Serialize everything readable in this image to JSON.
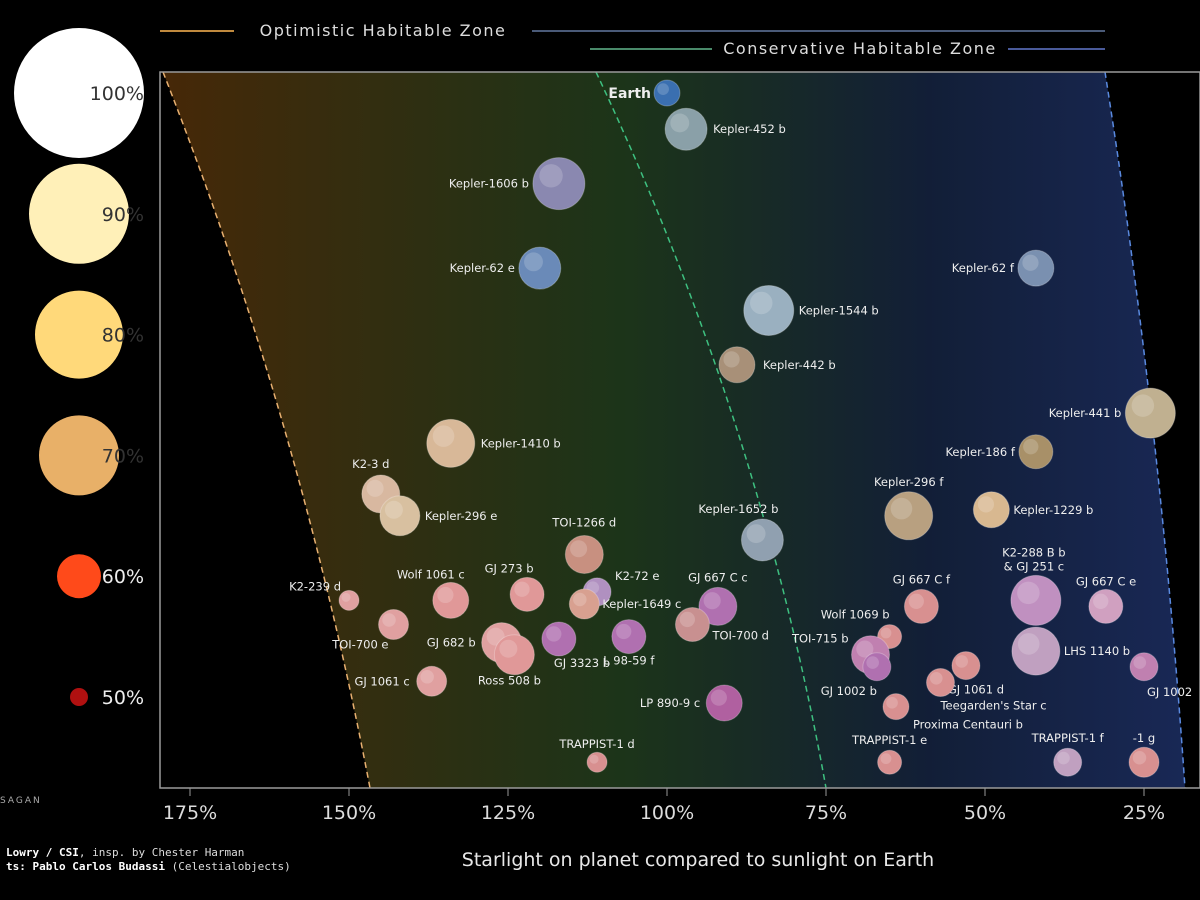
{
  "chart_data": {
    "type": "scatter",
    "xlabel": "Starlight on planet compared to sunlight on Earth",
    "x_ticks": [
      "175%",
      "150%",
      "125%",
      "100%",
      "75%",
      "50%",
      "25%"
    ],
    "x_tick_values": [
      175,
      150,
      125,
      100,
      75,
      50,
      25
    ],
    "xlim": [
      180,
      22
    ],
    "ylim": [
      43,
      102
    ],
    "y_ticks": [
      "100%",
      "90%",
      "80%",
      "70%",
      "60%",
      "50%"
    ],
    "y_tick_values": [
      100,
      90,
      80,
      70,
      60,
      50
    ],
    "legend_zones": [
      {
        "name": "Optimistic Habitable Zone",
        "color": "#c08a3e"
      },
      {
        "name": "Conservative Habitable Zone",
        "color": "#4a8a6a"
      }
    ],
    "star_colors": [
      "#ffffff",
      "#fff0b8",
      "#ffd97a",
      "#e8b068",
      "#ff4a1a",
      "#b01010"
    ],
    "planets": [
      {
        "name": "Earth",
        "x": 100,
        "y": 100,
        "color": "#3a6fb0"
      },
      {
        "name": "Kepler-452 b",
        "x": 97,
        "y": 97,
        "color": "#8aa0a8"
      },
      {
        "name": "Kepler-1606 b",
        "x": 117,
        "y": 92.5,
        "color": "#8a88b0"
      },
      {
        "name": "Kepler-62 e",
        "x": 120,
        "y": 85.5,
        "color": "#6a8ab8"
      },
      {
        "name": "Kepler-62 f",
        "x": 42,
        "y": 85.5,
        "color": "#7a90b0"
      },
      {
        "name": "Kepler-1544 b",
        "x": 84,
        "y": 82,
        "color": "#9ab0c0"
      },
      {
        "name": "Kepler-442 b",
        "x": 89,
        "y": 77.5,
        "color": "#a89078"
      },
      {
        "name": "Kepler-441 b",
        "x": 24,
        "y": 73.5,
        "color": "#c0b090"
      },
      {
        "name": "Kepler-1410 b",
        "x": 134,
        "y": 71,
        "color": "#d8b898"
      },
      {
        "name": "Kepler-186 f",
        "x": 42,
        "y": 70.3,
        "color": "#a89068"
      },
      {
        "name": "K2-3 d",
        "x": 145,
        "y": 66.8,
        "color": "#d8b8a0"
      },
      {
        "name": "Kepler-296 e",
        "x": 142,
        "y": 65,
        "color": "#d8c0a0"
      },
      {
        "name": "Kepler-296 f",
        "x": 62,
        "y": 65,
        "color": "#b8a080"
      },
      {
        "name": "Kepler-1229 b",
        "x": 49,
        "y": 65.5,
        "color": "#d8b890"
      },
      {
        "name": "Kepler-1652 b",
        "x": 85,
        "y": 63,
        "color": "#90a0b0"
      },
      {
        "name": "TOI-1266 d",
        "x": 113,
        "y": 61.8,
        "color": "#c89080"
      },
      {
        "name": "K2-288 B b & GJ 251 c",
        "x": 42,
        "y": 58,
        "color": "#c090c0"
      },
      {
        "name": "GJ 667 C e",
        "x": 31,
        "y": 57.5,
        "color": "#d0a0c0"
      },
      {
        "name": "K2-239 d",
        "x": 150,
        "y": 58,
        "color": "#e0a0a0"
      },
      {
        "name": "Wolf 1061 c",
        "x": 134,
        "y": 58,
        "color": "#e09898"
      },
      {
        "name": "GJ 273 b",
        "x": 122,
        "y": 58.5,
        "color": "#e09898"
      },
      {
        "name": "K2-72 e",
        "x": 111,
        "y": 58.7,
        "color": "#b090c0"
      },
      {
        "name": "Kepler-1649 c",
        "x": 113,
        "y": 57.7,
        "color": "#d8a090"
      },
      {
        "name": "GJ 667 C c",
        "x": 92,
        "y": 57.5,
        "color": "#b070b0"
      },
      {
        "name": "GJ 667 C f",
        "x": 60,
        "y": 57.5,
        "color": "#d89090"
      },
      {
        "name": "TOI-700 e",
        "x": 143,
        "y": 56,
        "color": "#e0a0a0"
      },
      {
        "name": "TOI-700 d",
        "x": 96,
        "y": 56,
        "color": "#c89090"
      },
      {
        "name": "Wolf 1069 b",
        "x": 65,
        "y": 55,
        "color": "#d89090"
      },
      {
        "name": "GJ 682 b",
        "x": 126,
        "y": 54.5,
        "color": "#e0a0a0"
      },
      {
        "name": "GJ 3323 b",
        "x": 117,
        "y": 54.8,
        "color": "#b070b0"
      },
      {
        "name": "L 98-59 f",
        "x": 106,
        "y": 55,
        "color": "#b070b0"
      },
      {
        "name": "TOI-715 b",
        "x": 68,
        "y": 53.5,
        "color": "#c080b0"
      },
      {
        "name": "LHS 1140 b",
        "x": 42,
        "y": 53.8,
        "color": "#c0a0c0"
      },
      {
        "name": "Ross 508 b",
        "x": 124,
        "y": 53.5,
        "color": "#e09898"
      },
      {
        "name": "GJ 1061 c",
        "x": 137,
        "y": 51.3,
        "color": "#e0a0a0"
      },
      {
        "name": "GJ 1002 b",
        "x": 67,
        "y": 52.5,
        "color": "#b070b0"
      },
      {
        "name": "GJ 1061 d",
        "x": 53,
        "y": 52.6,
        "color": "#d89090"
      },
      {
        "name": "Teegarden's Star c",
        "x": 57,
        "y": 51.2,
        "color": "#d89090"
      },
      {
        "name": "GJ 1002",
        "x": 25,
        "y": 52.5,
        "color": "#c080b0"
      },
      {
        "name": "LP 890-9 c",
        "x": 91,
        "y": 49.5,
        "color": "#b060a0"
      },
      {
        "name": "Proxima Centauri b",
        "x": 64,
        "y": 49.2,
        "color": "#d89090"
      },
      {
        "name": "TRAPPIST-1 d",
        "x": 111,
        "y": 44.6,
        "color": "#d89090"
      },
      {
        "name": "TRAPPIST-1 e",
        "x": 65,
        "y": 44.6,
        "color": "#d89090"
      },
      {
        "name": "TRAPPIST-1 f",
        "x": 37,
        "y": 44.6,
        "color": "#c0a0c0"
      },
      {
        "name": "-1 g",
        "x": 25,
        "y": 44.6,
        "color": "#d89090"
      }
    ]
  },
  "credits": {
    "line1_bold": "Lowry / CSI",
    "line1_rest": ", insp. by Chester Harman",
    "line2_bold": "ts: Pablo Carlos Budassi",
    "line2_rest": " (Celestialobjects)",
    "sagan": "SAGAN"
  }
}
